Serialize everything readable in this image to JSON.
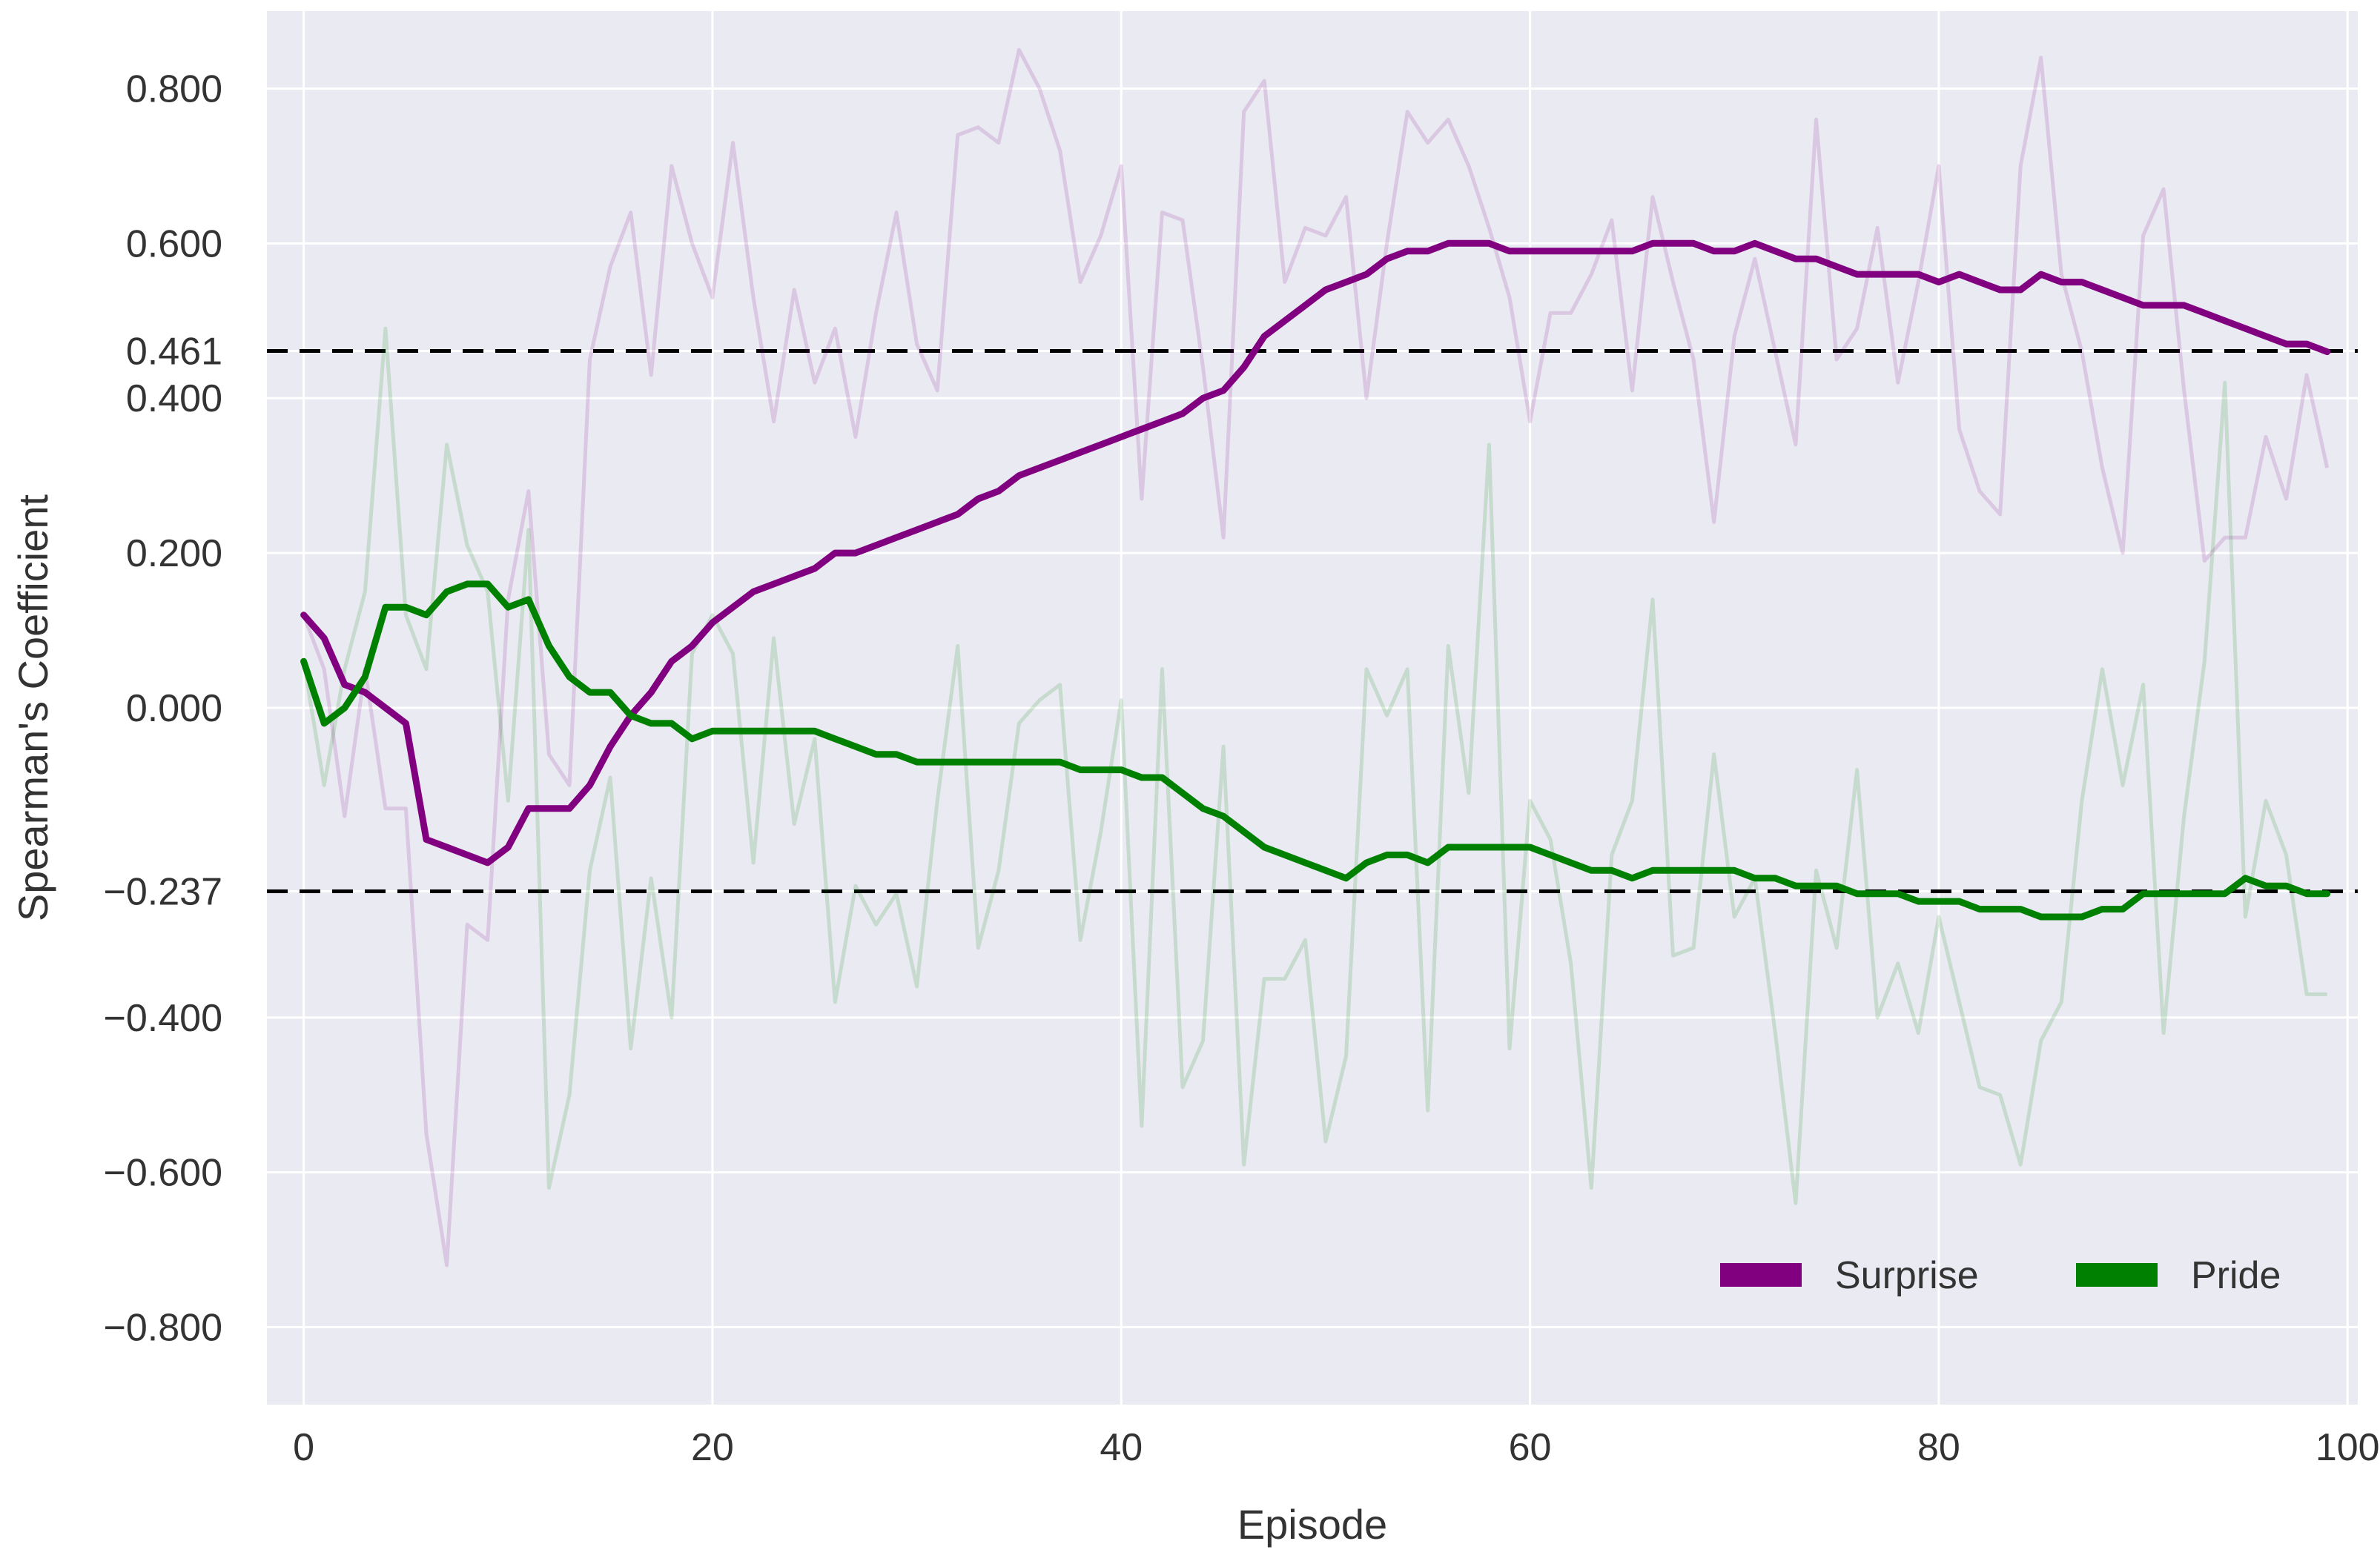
{
  "chart_data": {
    "type": "line",
    "title": "",
    "xlabel": "Episode",
    "ylabel": "Spearman's Coefficient",
    "xlim": [
      -1.8,
      100.5
    ],
    "ylim": [
      -0.9,
      0.9
    ],
    "xticks": [
      0,
      20,
      40,
      60,
      80,
      100
    ],
    "xtick_labels": [
      "0",
      "20",
      "40",
      "60",
      "80",
      "100"
    ],
    "yticks": [
      0.8,
      0.6,
      0.461,
      0.4,
      0.2,
      0.0,
      -0.237,
      -0.4,
      -0.6,
      -0.8
    ],
    "ytick_labels": [
      "0.800",
      "0.600",
      "0.461",
      "0.400",
      "0.200",
      "0.000",
      "−0.237",
      "−0.400",
      "−0.600",
      "−0.800"
    ],
    "grid": true,
    "legend_position": "lower-right",
    "background_color": "#eaeaf2",
    "grid_color": "#ffffff",
    "reference_lines": [
      {
        "y": 0.461,
        "style": "dashed",
        "color": "#000000"
      },
      {
        "y": -0.237,
        "style": "dashed",
        "color": "#000000"
      }
    ],
    "series": [
      {
        "name": "Surprise",
        "color": "#800080",
        "kind": "smoothed",
        "raw_values": [
          0.12,
          0.05,
          -0.14,
          0.05,
          -0.13,
          -0.13,
          -0.55,
          -0.72,
          -0.28,
          -0.3,
          0.14,
          0.28,
          -0.06,
          -0.1,
          0.45,
          0.57,
          0.64,
          0.43,
          0.7,
          0.6,
          0.53,
          0.73,
          0.53,
          0.37,
          0.54,
          0.42,
          0.49,
          0.35,
          0.51,
          0.64,
          0.47,
          0.41,
          0.74,
          0.75,
          0.73,
          0.85,
          0.8,
          0.72,
          0.55,
          0.61,
          0.7,
          0.27,
          0.64,
          0.63,
          0.44,
          0.22,
          0.77,
          0.81,
          0.55,
          0.62,
          0.61,
          0.66,
          0.4,
          0.6,
          0.77,
          0.73,
          0.76,
          0.7,
          0.62,
          0.53,
          0.37,
          0.51,
          0.51,
          0.56,
          0.63,
          0.41,
          0.66,
          0.55,
          0.45,
          0.24,
          0.48,
          0.58,
          0.46,
          0.34,
          0.76,
          0.45,
          0.49,
          0.62,
          0.42,
          0.55,
          0.7,
          0.36,
          0.28,
          0.25,
          0.7,
          0.84,
          0.56,
          0.46,
          0.31,
          0.2,
          0.61,
          0.67,
          0.41,
          0.19,
          0.22,
          0.22,
          0.35,
          0.27,
          0.43,
          0.31
        ],
        "values": [
          0.12,
          0.09,
          0.03,
          0.02,
          0.0,
          -0.02,
          -0.17,
          -0.18,
          -0.19,
          -0.2,
          -0.18,
          -0.13,
          -0.13,
          -0.13,
          -0.1,
          -0.05,
          -0.01,
          0.02,
          0.06,
          0.08,
          0.11,
          0.13,
          0.15,
          0.16,
          0.17,
          0.18,
          0.2,
          0.2,
          0.21,
          0.22,
          0.23,
          0.24,
          0.25,
          0.27,
          0.28,
          0.3,
          0.31,
          0.32,
          0.33,
          0.34,
          0.35,
          0.36,
          0.37,
          0.38,
          0.4,
          0.41,
          0.44,
          0.48,
          0.5,
          0.52,
          0.54,
          0.55,
          0.56,
          0.58,
          0.59,
          0.59,
          0.6,
          0.6,
          0.6,
          0.59,
          0.59,
          0.59,
          0.59,
          0.59,
          0.59,
          0.59,
          0.6,
          0.6,
          0.6,
          0.59,
          0.59,
          0.6,
          0.59,
          0.58,
          0.58,
          0.57,
          0.56,
          0.56,
          0.56,
          0.56,
          0.55,
          0.56,
          0.55,
          0.54,
          0.54,
          0.56,
          0.55,
          0.55,
          0.54,
          0.53,
          0.52,
          0.52,
          0.52,
          0.51,
          0.5,
          0.49,
          0.48,
          0.47,
          0.47,
          0.46
        ]
      },
      {
        "name": "Pride",
        "color": "#008000",
        "kind": "smoothed",
        "raw_values": [
          0.06,
          -0.1,
          0.05,
          0.15,
          0.49,
          0.12,
          0.05,
          0.34,
          0.21,
          0.15,
          -0.12,
          0.23,
          -0.62,
          -0.5,
          -0.21,
          -0.09,
          -0.44,
          -0.22,
          -0.4,
          0.07,
          0.12,
          0.07,
          -0.2,
          0.09,
          -0.15,
          -0.04,
          -0.38,
          -0.23,
          -0.28,
          -0.24,
          -0.36,
          -0.12,
          0.08,
          -0.31,
          -0.21,
          -0.02,
          0.01,
          0.03,
          -0.3,
          -0.16,
          0.01,
          -0.54,
          0.05,
          -0.49,
          -0.43,
          -0.05,
          -0.59,
          -0.35,
          -0.35,
          -0.3,
          -0.56,
          -0.45,
          0.05,
          -0.01,
          0.05,
          -0.52,
          0.08,
          -0.11,
          0.34,
          -0.44,
          -0.12,
          -0.17,
          -0.33,
          -0.62,
          -0.19,
          -0.12,
          0.14,
          -0.32,
          -0.31,
          -0.06,
          -0.27,
          -0.22,
          -0.42,
          -0.64,
          -0.21,
          -0.31,
          -0.08,
          -0.4,
          -0.33,
          -0.42,
          -0.27,
          -0.38,
          -0.49,
          -0.5,
          -0.59,
          -0.43,
          -0.38,
          -0.12,
          0.05,
          -0.1,
          0.03,
          -0.42,
          -0.14,
          0.06,
          0.42,
          -0.27,
          -0.12,
          -0.19,
          -0.37,
          -0.37
        ],
        "values": [
          0.06,
          -0.02,
          0.0,
          0.04,
          0.13,
          0.13,
          0.12,
          0.15,
          0.16,
          0.16,
          0.13,
          0.14,
          0.08,
          0.04,
          0.02,
          0.02,
          -0.01,
          -0.02,
          -0.02,
          -0.04,
          -0.03,
          -0.03,
          -0.03,
          -0.03,
          -0.03,
          -0.03,
          -0.04,
          -0.05,
          -0.06,
          -0.06,
          -0.07,
          -0.07,
          -0.07,
          -0.07,
          -0.07,
          -0.07,
          -0.07,
          -0.07,
          -0.08,
          -0.08,
          -0.08,
          -0.09,
          -0.09,
          -0.11,
          -0.13,
          -0.14,
          -0.16,
          -0.18,
          -0.19,
          -0.2,
          -0.21,
          -0.22,
          -0.2,
          -0.19,
          -0.19,
          -0.2,
          -0.18,
          -0.18,
          -0.18,
          -0.18,
          -0.18,
          -0.19,
          -0.2,
          -0.21,
          -0.21,
          -0.22,
          -0.21,
          -0.21,
          -0.21,
          -0.21,
          -0.21,
          -0.22,
          -0.22,
          -0.23,
          -0.23,
          -0.23,
          -0.24,
          -0.24,
          -0.24,
          -0.25,
          -0.25,
          -0.25,
          -0.26,
          -0.26,
          -0.26,
          -0.27,
          -0.27,
          -0.27,
          -0.26,
          -0.26,
          -0.24,
          -0.24,
          -0.24,
          -0.24,
          -0.24,
          -0.22,
          -0.23,
          -0.23,
          -0.24,
          -0.24
        ]
      }
    ]
  }
}
